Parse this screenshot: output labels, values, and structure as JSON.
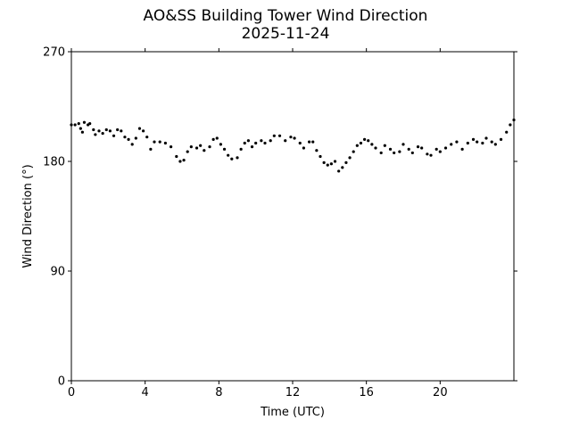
{
  "chart_data": {
    "type": "scatter",
    "title": "AO&SS Building Tower Wind Direction",
    "subtitle": "2025-11-24",
    "xlabel": "Time (UTC)",
    "ylabel": "Wind Direction (°)",
    "xlim": [
      0,
      24
    ],
    "ylim": [
      0,
      270
    ],
    "xticks": [
      0,
      4,
      8,
      12,
      16,
      20
    ],
    "yticks": [
      0,
      90,
      180,
      270
    ],
    "grid": false,
    "marker_color": "#000000",
    "series": [
      {
        "points": [
          [
            0.0,
            210
          ],
          [
            0.2,
            210
          ],
          [
            0.4,
            211
          ],
          [
            0.5,
            207
          ],
          [
            0.6,
            204
          ],
          [
            0.7,
            212
          ],
          [
            0.9,
            210
          ],
          [
            1.0,
            211
          ],
          [
            1.2,
            206
          ],
          [
            1.3,
            202
          ],
          [
            1.5,
            205
          ],
          [
            1.7,
            203
          ],
          [
            1.9,
            206
          ],
          [
            2.1,
            205
          ],
          [
            2.3,
            201
          ],
          [
            2.5,
            206
          ],
          [
            2.7,
            205
          ],
          [
            2.9,
            200
          ],
          [
            3.1,
            198
          ],
          [
            3.3,
            194
          ],
          [
            3.5,
            199
          ],
          [
            3.7,
            207
          ],
          [
            3.9,
            205
          ],
          [
            4.1,
            200
          ],
          [
            4.3,
            190
          ],
          [
            4.5,
            196
          ],
          [
            4.8,
            196
          ],
          [
            5.1,
            195
          ],
          [
            5.4,
            192
          ],
          [
            5.7,
            184
          ],
          [
            5.9,
            180
          ],
          [
            6.1,
            181
          ],
          [
            6.3,
            188
          ],
          [
            6.5,
            192
          ],
          [
            6.8,
            191
          ],
          [
            7.0,
            193
          ],
          [
            7.2,
            189
          ],
          [
            7.5,
            192
          ],
          [
            7.7,
            198
          ],
          [
            7.9,
            199
          ],
          [
            8.1,
            194
          ],
          [
            8.3,
            190
          ],
          [
            8.5,
            185
          ],
          [
            8.7,
            182
          ],
          [
            9.0,
            183
          ],
          [
            9.2,
            190
          ],
          [
            9.4,
            195
          ],
          [
            9.6,
            197
          ],
          [
            9.8,
            192
          ],
          [
            10.0,
            195
          ],
          [
            10.3,
            197
          ],
          [
            10.5,
            195
          ],
          [
            10.8,
            197
          ],
          [
            11.0,
            201
          ],
          [
            11.3,
            201
          ],
          [
            11.6,
            197
          ],
          [
            11.9,
            200
          ],
          [
            12.1,
            199
          ],
          [
            12.4,
            195
          ],
          [
            12.6,
            191
          ],
          [
            12.9,
            196
          ],
          [
            13.1,
            196
          ],
          [
            13.3,
            189
          ],
          [
            13.5,
            184
          ],
          [
            13.7,
            179
          ],
          [
            13.9,
            177
          ],
          [
            14.1,
            178
          ],
          [
            14.3,
            180
          ],
          [
            14.5,
            172
          ],
          [
            14.7,
            175
          ],
          [
            14.9,
            179
          ],
          [
            15.1,
            183
          ],
          [
            15.3,
            188
          ],
          [
            15.5,
            193
          ],
          [
            15.7,
            195
          ],
          [
            15.9,
            198
          ],
          [
            16.1,
            197
          ],
          [
            16.3,
            194
          ],
          [
            16.5,
            191
          ],
          [
            16.8,
            187
          ],
          [
            17.0,
            193
          ],
          [
            17.3,
            190
          ],
          [
            17.5,
            187
          ],
          [
            17.8,
            188
          ],
          [
            18.0,
            194
          ],
          [
            18.3,
            190
          ],
          [
            18.5,
            187
          ],
          [
            18.8,
            192
          ],
          [
            19.0,
            191
          ],
          [
            19.3,
            186
          ],
          [
            19.5,
            185
          ],
          [
            19.8,
            190
          ],
          [
            20.0,
            188
          ],
          [
            20.3,
            191
          ],
          [
            20.6,
            194
          ],
          [
            20.9,
            196
          ],
          [
            21.2,
            190
          ],
          [
            21.5,
            195
          ],
          [
            21.8,
            198
          ],
          [
            22.0,
            196
          ],
          [
            22.3,
            195
          ],
          [
            22.5,
            199
          ],
          [
            22.8,
            196
          ],
          [
            23.0,
            194
          ],
          [
            23.3,
            198
          ],
          [
            23.6,
            204
          ],
          [
            23.8,
            210
          ],
          [
            24.0,
            214
          ]
        ]
      }
    ]
  }
}
